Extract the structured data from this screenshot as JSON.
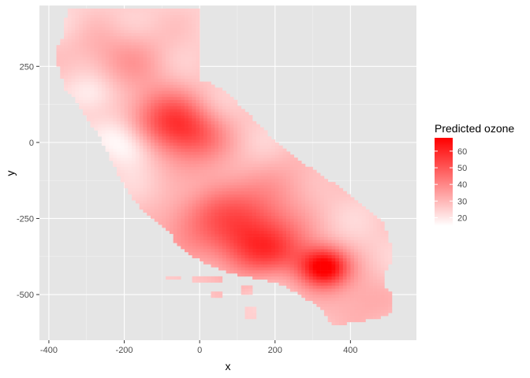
{
  "chart_data": {
    "type": "heatmap",
    "xlabel": "x",
    "ylabel": "y",
    "xlim": [
      -425,
      575
    ],
    "ylim": [
      -650,
      450
    ],
    "x_ticks": [
      -400,
      -200,
      0,
      200,
      400
    ],
    "y_ticks": [
      250,
      0,
      -250,
      -500
    ],
    "x_tick_labels": [
      "-400",
      "-200",
      "0",
      "200",
      "400"
    ],
    "y_tick_labels": [
      "250",
      "0",
      "-250",
      "-500"
    ],
    "legend": {
      "title": "Predicted ozone",
      "ticks": [
        60,
        50,
        40,
        30,
        20
      ],
      "tick_labels": [
        "60",
        "50",
        "40",
        "30",
        "20"
      ],
      "range": [
        15,
        68
      ],
      "low_color": "#ffffff",
      "high_color": "#ff0000",
      "position": "right"
    },
    "panel_background": "#e5e5e5",
    "grid_color": "#ffffff",
    "region": "California",
    "hotspots": [
      {
        "x": 330,
        "y": -410,
        "value": 68
      },
      {
        "x": 210,
        "y": -360,
        "value": 48
      },
      {
        "x": 100,
        "y": -350,
        "value": 40
      },
      {
        "x": 150,
        "y": -250,
        "value": 42
      },
      {
        "x": 50,
        "y": -180,
        "value": 38
      },
      {
        "x": -20,
        "y": 20,
        "value": 42
      },
      {
        "x": -60,
        "y": 60,
        "value": 40
      },
      {
        "x": -120,
        "y": 100,
        "value": 36
      },
      {
        "x": -170,
        "y": 270,
        "value": 33
      },
      {
        "x": -280,
        "y": 300,
        "value": 30
      },
      {
        "x": -30,
        "y": -280,
        "value": 38
      },
      {
        "x": 420,
        "y": -520,
        "value": 34
      },
      {
        "x": 250,
        "y": -120,
        "value": 32
      }
    ],
    "cool_spots": [
      {
        "x": -180,
        "y": -20,
        "value": 15
      },
      {
        "x": -290,
        "y": 160,
        "value": 16
      },
      {
        "x": -220,
        "y": 30,
        "value": 18
      },
      {
        "x": -20,
        "y": -160,
        "value": 21
      },
      {
        "x": 200,
        "y": -430,
        "value": 20
      },
      {
        "x": -340,
        "y": 390,
        "value": 22
      },
      {
        "x": 20,
        "y": 110,
        "value": 23
      }
    ]
  }
}
